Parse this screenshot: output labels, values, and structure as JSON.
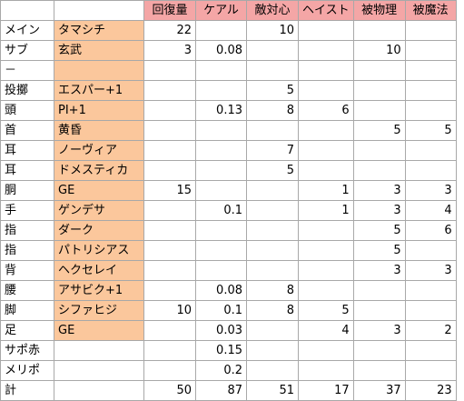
{
  "columns": [
    "回復量",
    "ケアル",
    "敵対心",
    "ヘイスト",
    "被物理",
    "被魔法"
  ],
  "rows": [
    {
      "slot": "メイン",
      "item": "タマシチ",
      "values": [
        "22",
        "",
        "10",
        "",
        "",
        ""
      ],
      "highlight": true
    },
    {
      "slot": "サブ",
      "item": "玄武",
      "values": [
        "3",
        "0.08",
        "",
        "",
        "10",
        ""
      ],
      "highlight": true
    },
    {
      "slot": "－",
      "item": "",
      "values": [
        "",
        "",
        "",
        "",
        "",
        ""
      ],
      "highlight": true
    },
    {
      "slot": "投擲",
      "item": "エスパー+1",
      "values": [
        "",
        "",
        "5",
        "",
        "",
        ""
      ],
      "highlight": true
    },
    {
      "slot": "頭",
      "item": "PI+1",
      "values": [
        "",
        "0.13",
        "8",
        "6",
        "",
        ""
      ],
      "highlight": true
    },
    {
      "slot": "首",
      "item": "黄昏",
      "values": [
        "",
        "",
        "",
        "",
        "5",
        "5"
      ],
      "highlight": true
    },
    {
      "slot": "耳",
      "item": "ノーヴィア",
      "values": [
        "",
        "",
        "7",
        "",
        "",
        ""
      ],
      "highlight": true
    },
    {
      "slot": "耳",
      "item": "ドメスティカ",
      "values": [
        "",
        "",
        "5",
        "",
        "",
        ""
      ],
      "highlight": true
    },
    {
      "slot": "胴",
      "item": "GE",
      "values": [
        "15",
        "",
        "",
        "1",
        "3",
        "3"
      ],
      "highlight": true
    },
    {
      "slot": "手",
      "item": "ゲンデサ",
      "values": [
        "",
        "0.1",
        "",
        "1",
        "3",
        "4"
      ],
      "highlight": true
    },
    {
      "slot": "指",
      "item": "ダーク",
      "values": [
        "",
        "",
        "",
        "",
        "5",
        "6"
      ],
      "highlight": true
    },
    {
      "slot": "指",
      "item": "パトリシアス",
      "values": [
        "",
        "",
        "",
        "",
        "5",
        ""
      ],
      "highlight": true
    },
    {
      "slot": "背",
      "item": "ヘクセレイ",
      "values": [
        "",
        "",
        "",
        "",
        "3",
        "3"
      ],
      "highlight": true
    },
    {
      "slot": "腰",
      "item": "アサビク+1",
      "values": [
        "",
        "0.08",
        "8",
        "",
        "",
        ""
      ],
      "highlight": true
    },
    {
      "slot": "脚",
      "item": "シファヒジ",
      "values": [
        "10",
        "0.1",
        "8",
        "5",
        "",
        ""
      ],
      "highlight": true
    },
    {
      "slot": "足",
      "item": "GE",
      "values": [
        "",
        "0.03",
        "",
        "4",
        "3",
        "2"
      ],
      "highlight": true
    },
    {
      "slot": "サポ赤",
      "item": "",
      "values": [
        "",
        "0.15",
        "",
        "",
        "",
        ""
      ],
      "highlight": false
    },
    {
      "slot": "メリポ",
      "item": "",
      "values": [
        "",
        "0.2",
        "",
        "",
        "",
        ""
      ],
      "highlight": false
    },
    {
      "slot": "計",
      "item": "",
      "values": [
        "50",
        "87",
        "51",
        "17",
        "37",
        "23"
      ],
      "highlight": false
    }
  ],
  "colors": {
    "header_bg": "#f4a6a6",
    "item_bg": "#fbc79c",
    "grid": "#a8a8a8"
  }
}
